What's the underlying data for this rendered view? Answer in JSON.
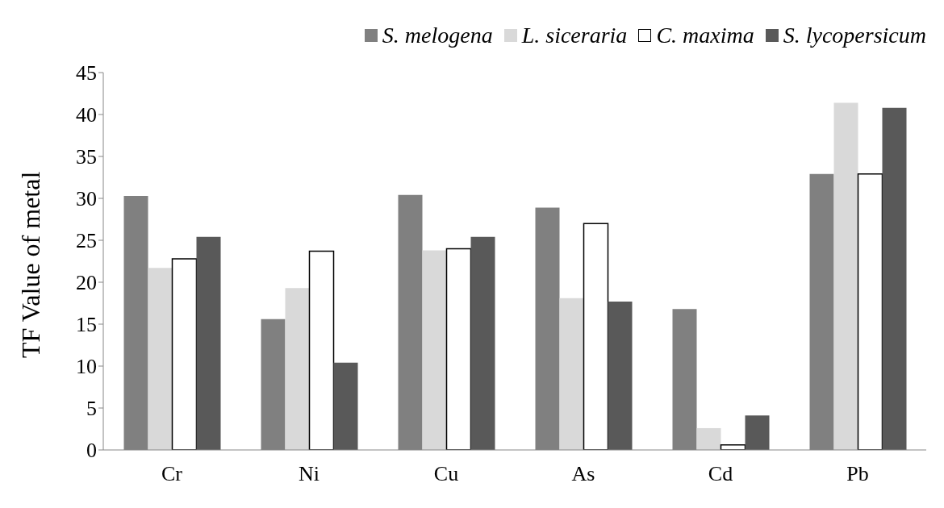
{
  "chart_data": {
    "type": "bar",
    "ylabel": "TF Value of metal",
    "categories": [
      "Cr",
      "Ni",
      "Cu",
      "As",
      "Cd",
      "Pb"
    ],
    "series": [
      {
        "name": "S. melogena",
        "color": "#808080",
        "values": [
          30.3,
          15.6,
          30.4,
          28.9,
          16.8,
          32.9
        ]
      },
      {
        "name": "L. siceraria",
        "color": "#d9d9d9",
        "values": [
          21.7,
          19.3,
          23.8,
          18.1,
          2.6,
          41.4
        ]
      },
      {
        "name": "C. maxima",
        "color": "#ffffff",
        "values": [
          22.8,
          23.7,
          24.0,
          27.0,
          0.6,
          32.9
        ]
      },
      {
        "name": "S. lycopersicum",
        "color": "#595959",
        "values": [
          25.4,
          10.4,
          25.4,
          17.7,
          4.1,
          40.8
        ]
      }
    ],
    "ylim": [
      0,
      45
    ],
    "yticks": [
      0,
      5,
      10,
      15,
      20,
      25,
      30,
      35,
      40,
      45
    ],
    "grid": false,
    "legend": "top right"
  }
}
